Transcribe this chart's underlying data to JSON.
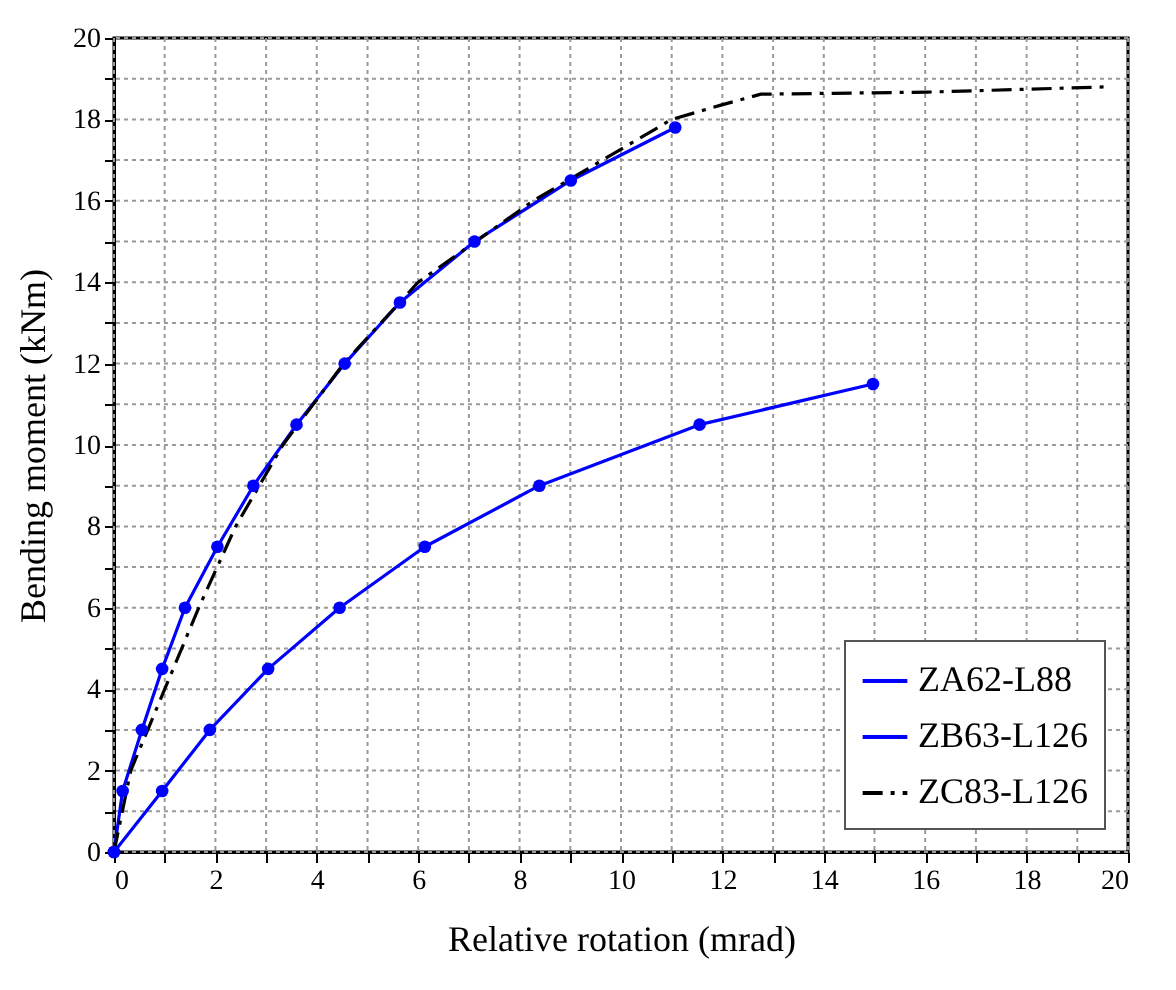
{
  "chart_data": {
    "type": "line",
    "xlabel": "Relative rotation (mrad)",
    "ylabel": "Bending moment (kNm)",
    "xlim": [
      0,
      20
    ],
    "ylim": [
      0,
      20
    ],
    "xticks": [
      0,
      {
        "value": 1,
        "label": null
      },
      2,
      {
        "value": 3,
        "label": null
      },
      4,
      {
        "value": 5,
        "label": null
      },
      6,
      {
        "value": 7,
        "label": null
      },
      8,
      {
        "value": 9,
        "label": null
      },
      10,
      {
        "value": 11,
        "label": null
      },
      12,
      {
        "value": 13,
        "label": null
      },
      14,
      {
        "value": 15,
        "label": null
      },
      16,
      {
        "value": 17,
        "label": null
      },
      18,
      {
        "value": 19,
        "label": null
      },
      20
    ],
    "yticks": [
      0,
      {
        "value": 1,
        "label": null
      },
      2,
      {
        "value": 3,
        "label": null
      },
      4,
      {
        "value": 5,
        "label": null
      },
      6,
      {
        "value": 7,
        "label": null
      },
      8,
      {
        "value": 9,
        "label": null
      },
      10,
      {
        "value": 11,
        "label": null
      },
      12,
      {
        "value": 13,
        "label": null
      },
      14,
      {
        "value": 15,
        "label": null
      },
      16,
      {
        "value": 17,
        "label": null
      },
      18,
      {
        "value": 19,
        "label": null
      },
      20
    ],
    "grid": true,
    "legend": "bottom right",
    "series": [
      {
        "name": "ZA62-L88",
        "color": "#0000ff",
        "marker": "circle",
        "line_style": "solid",
        "x": [
          0,
          0.95,
          1.89,
          3.04,
          4.45,
          6.13,
          8.39,
          11.55,
          14.97
        ],
        "values": [
          0,
          1.5,
          3.0,
          4.5,
          6.0,
          7.5,
          9.0,
          10.5,
          11.5
        ]
      },
      {
        "name": "ZB63-L126",
        "color": "#0000ff",
        "marker": "circle",
        "line_style": "solid",
        "x": [
          0,
          0.17,
          0.55,
          0.95,
          1.4,
          2.04,
          2.75,
          3.6,
          4.55,
          5.64,
          7.11,
          9.01,
          11.07
        ],
        "values": [
          0,
          1.5,
          3.0,
          4.5,
          6.0,
          7.5,
          9.0,
          10.5,
          12.0,
          13.5,
          15.0,
          16.5,
          17.8
        ]
      },
      {
        "name": "ZC83-L126",
        "color": "#000000",
        "marker": "none",
        "line_style": "dashed",
        "x": [
          0,
          0.33,
          1.0,
          1.67,
          2.4,
          3.33,
          4.53,
          6.0,
          8.27,
          11.0,
          11.97,
          12.76,
          16.04,
          19.6
        ],
        "values": [
          0,
          2,
          4,
          6,
          8,
          10,
          12,
          14,
          16,
          18.0,
          18.35,
          18.62,
          18.67,
          18.8
        ]
      }
    ]
  }
}
